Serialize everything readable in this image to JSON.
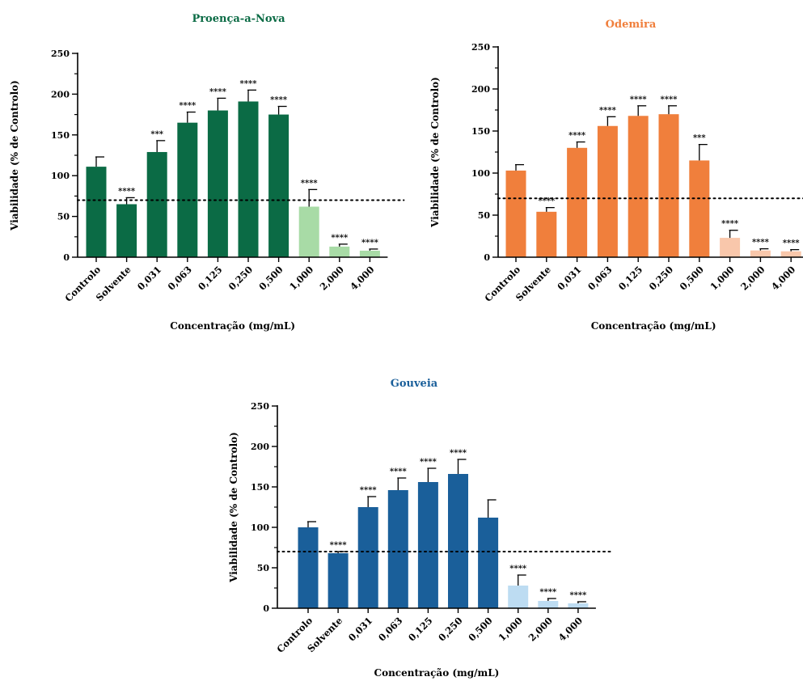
{
  "chart_data": [
    {
      "type": "bar",
      "title": "Proença-a-Nova",
      "title_color": "#0b6b45",
      "xlabel": "Concentração (mg/mL)",
      "ylabel": "Viabilidade (% de Controlo)",
      "ylim": [
        0,
        250
      ],
      "yticks": [
        "0",
        "50",
        "100",
        "150",
        "200",
        "250"
      ],
      "categories": [
        "Controlo",
        "Solvente",
        "0,031",
        "0,063",
        "0,125",
        "0,250",
        "0,500",
        "1,000",
        "2,000",
        "4,000"
      ],
      "values": [
        111,
        65,
        129,
        165,
        180,
        191,
        175,
        62,
        13,
        8
      ],
      "errors": [
        12,
        8,
        14,
        13,
        15,
        14,
        10,
        21,
        3,
        2
      ],
      "significance": [
        "",
        "****",
        "***",
        "****",
        "****",
        "****",
        "****",
        "****",
        "****",
        "****"
      ],
      "colors": [
        "#0b6b45",
        "#0b6b45",
        "#0b6b45",
        "#0b6b45",
        "#0b6b45",
        "#0b6b45",
        "#0b6b45",
        "#a8dba6",
        "#a8dba6",
        "#a8dba6"
      ],
      "reference_line": 70
    },
    {
      "type": "bar",
      "title": "Odemira",
      "title_color": "#f07f3c",
      "xlabel": "Concentração (mg/mL)",
      "ylabel": "Viabilidade (% de Controlo)",
      "ylim": [
        0,
        250
      ],
      "yticks": [
        "0",
        "50",
        "100",
        "150",
        "200",
        "250"
      ],
      "categories": [
        "Controlo",
        "Solvente",
        "0,031",
        "0,063",
        "0,125",
        "0,250",
        "0,500",
        "1,000",
        "2,000",
        "4,000"
      ],
      "values": [
        103,
        54,
        130,
        156,
        168,
        170,
        115,
        23,
        8,
        7
      ],
      "errors": [
        7,
        5,
        7,
        11,
        12,
        10,
        19,
        9,
        2,
        2
      ],
      "significance": [
        "",
        "****",
        "****",
        "****",
        "****",
        "****",
        "***",
        "****",
        "****",
        "****"
      ],
      "colors": [
        "#f07f3c",
        "#f07f3c",
        "#f07f3c",
        "#f07f3c",
        "#f07f3c",
        "#f07f3c",
        "#f07f3c",
        "#f9c7ab",
        "#f9c7ab",
        "#f9c7ab"
      ],
      "reference_line": 70
    },
    {
      "type": "bar",
      "title": "Gouveia",
      "title_color": "#1a5f9a",
      "xlabel": "Concentração (mg/mL)",
      "ylabel": "Viabilidade (% de Controlo)",
      "ylim": [
        0,
        250
      ],
      "yticks": [
        "0",
        "50",
        "100",
        "150",
        "200",
        "250"
      ],
      "categories": [
        "Controlo",
        "Solvente",
        "0,031",
        "0,063",
        "0,125",
        "0,250",
        "0,500",
        "1,000",
        "2,000",
        "4,000"
      ],
      "values": [
        100,
        68,
        125,
        146,
        156,
        166,
        112,
        28,
        9,
        6
      ],
      "errors": [
        7,
        2,
        13,
        15,
        17,
        18,
        22,
        13,
        3,
        2
      ],
      "significance": [
        "",
        "****",
        "****",
        "****",
        "****",
        "****",
        "",
        "****",
        "****",
        "****"
      ],
      "colors": [
        "#1a5f9a",
        "#1a5f9a",
        "#1a5f9a",
        "#1a5f9a",
        "#1a5f9a",
        "#1a5f9a",
        "#1a5f9a",
        "#bddcf2",
        "#bddcf2",
        "#bddcf2"
      ],
      "reference_line": 70
    }
  ]
}
